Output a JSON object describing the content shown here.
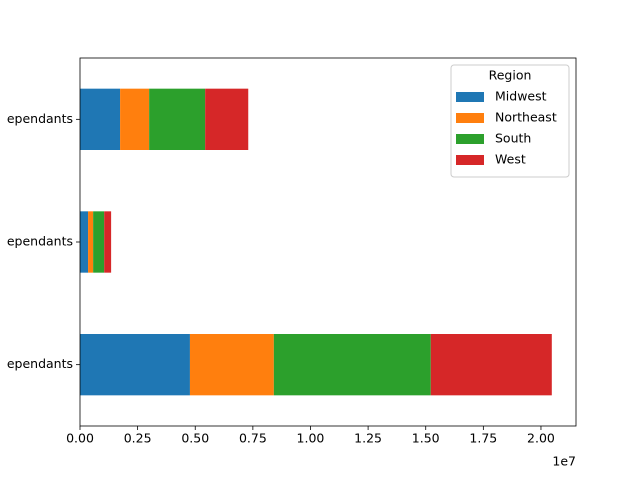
{
  "chart_data": {
    "type": "bar",
    "orientation": "horizontal",
    "stacked": true,
    "categories": [
      "ependants",
      "ependants",
      "ependants"
    ],
    "series": [
      {
        "name": "Midwest",
        "color": "#1f77b4",
        "values": [
          4770000,
          350000,
          1740000
        ]
      },
      {
        "name": "Northeast",
        "color": "#ff7f0e",
        "values": [
          3640000,
          220000,
          1260000
        ]
      },
      {
        "name": "South",
        "color": "#2ca02c",
        "values": [
          6810000,
          480000,
          2430000
        ]
      },
      {
        "name": "West",
        "color": "#d62728",
        "values": [
          5250000,
          300000,
          1870000
        ]
      }
    ],
    "xlim": [
      0,
      21520000
    ],
    "xticks": [
      {
        "value": 0,
        "label": "0.00"
      },
      {
        "value": 2500000,
        "label": "0.25"
      },
      {
        "value": 5000000,
        "label": "0.50"
      },
      {
        "value": 7500000,
        "label": "0.75"
      },
      {
        "value": 10000000,
        "label": "1.00"
      },
      {
        "value": 12500000,
        "label": "1.25"
      },
      {
        "value": 15000000,
        "label": "1.50"
      },
      {
        "value": 17500000,
        "label": "1.75"
      },
      {
        "value": 20000000,
        "label": "2.00"
      }
    ],
    "x_offset_label": "1e7",
    "legend_title": "Region",
    "legend_position": "upper right",
    "grid": false
  }
}
